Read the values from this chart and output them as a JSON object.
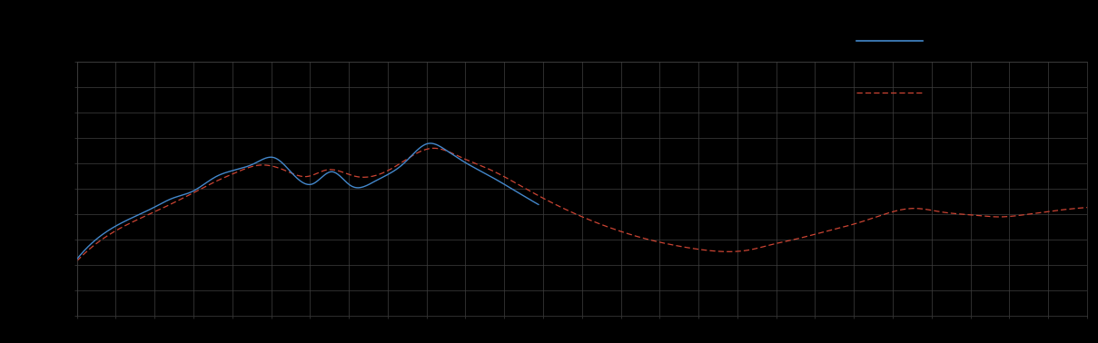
{
  "background_color": "#000000",
  "plot_bg_color": "#000000",
  "grid_color": "#404040",
  "line1_color": "#4488cc",
  "line2_color": "#cc4433",
  "figsize": [
    12.09,
    3.78
  ],
  "dpi": 100,
  "xlim": [
    0,
    1050
  ],
  "ylim": [
    0,
    270
  ],
  "n_xgrid": 27,
  "n_ygrid": 11,
  "legend_line1_x": [
    870,
    920
  ],
  "legend_line1_y": [
    22,
    22
  ],
  "legend_line2_x": [
    870,
    920
  ],
  "legend_line2_y": [
    42,
    42
  ]
}
